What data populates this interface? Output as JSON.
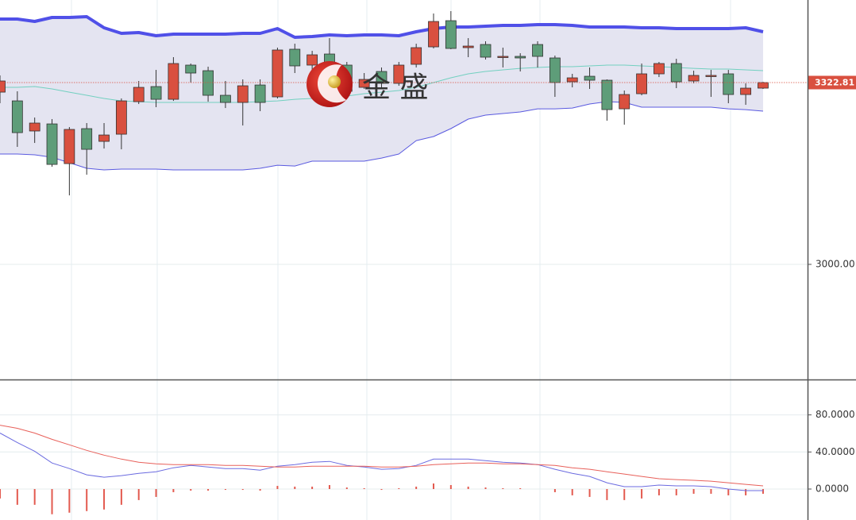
{
  "chart_data": [
    {
      "type": "candlestick",
      "open": [
        3305.8,
        3290.3,
        3236.8,
        3249.4,
        3178.9,
        3241.0,
        3218.4,
        3231.1,
        3288.9,
        3315.7,
        3293.1,
        3353.8,
        3343.9,
        3300.2,
        3287.5,
        3318.5,
        3297.4,
        3382.0,
        3353.8,
        3373.5,
        3353.8,
        3314.3,
        3342.5,
        3321.4,
        3355.2,
        3386.2,
        3432.7,
        3384.8,
        3390.4,
        3367.9,
        3369.3,
        3390.4,
        3366.5,
        3324.2,
        3334.0,
        3327.0,
        3276.2,
        3303.0,
        3338.3,
        3356.6,
        3325.6,
        3334.0,
        3338.3,
        3301.6,
        3312.9
      ],
      "high": [
        3335.5,
        3307.3,
        3260.7,
        3257.9,
        3243.8,
        3250.9,
        3250.9,
        3294.6,
        3325.6,
        3345.3,
        3367.9,
        3356.6,
        3351.0,
        3325.6,
        3328.4,
        3328.4,
        3384.8,
        3391.8,
        3379.2,
        3401.7,
        3359.4,
        3339.7,
        3349.6,
        3359.4,
        3391.8,
        3445.4,
        3449.7,
        3401.7,
        3396.1,
        3384.8,
        3374.9,
        3396.1,
        3370.7,
        3338.3,
        3349.6,
        3328.4,
        3308.7,
        3356.6,
        3359.4,
        3365.1,
        3343.9,
        3345.3,
        3345.3,
        3321.4,
        3324.2
      ],
      "low": [
        3286.1,
        3208.6,
        3215.6,
        3173.3,
        3122.5,
        3159.2,
        3205.7,
        3204.3,
        3284.7,
        3279.1,
        3290.3,
        3322.8,
        3288.9,
        3277.6,
        3246.6,
        3272.0,
        3294.6,
        3339.7,
        3342.5,
        3314.3,
        3300.2,
        3311.5,
        3314.3,
        3317.1,
        3349.6,
        3383.4,
        3382.0,
        3367.9,
        3363.7,
        3349.6,
        3342.5,
        3349.6,
        3297.4,
        3314.3,
        3311.5,
        3255.1,
        3248.0,
        3300.2,
        3332.6,
        3312.9,
        3321.4,
        3297.4,
        3286.1,
        3283.3,
        3311.5
      ],
      "close": [
        3325.6,
        3233.9,
        3250.9,
        3177.5,
        3239.6,
        3204.3,
        3229.7,
        3290.3,
        3314.3,
        3293.1,
        3356.6,
        3339.7,
        3300.2,
        3287.5,
        3317.1,
        3287.5,
        3380.6,
        3352.4,
        3372.1,
        3332.6,
        3307.3,
        3328.4,
        3321.4,
        3353.8,
        3384.8,
        3431.3,
        3383.4,
        3387.6,
        3367.9,
        3369.3,
        3366.5,
        3369.3,
        3322.8,
        3331.2,
        3327.0,
        3274.8,
        3301.6,
        3338.3,
        3356.6,
        3324.2,
        3335.5,
        3335.5,
        3301.6,
        3312.9,
        3322.81
      ],
      "up_color": "#d9503f",
      "down_color": "#5e9d79",
      "band_fill": "#e4e4f1",
      "series": [
        {
          "color": "#5050e8",
          "width": 4,
          "values": [
            3435.6,
            3435.6,
            3431.3,
            3438.4,
            3438.4,
            3439.8,
            3420.1,
            3410.2,
            3411.6,
            3405.9,
            3408.8,
            3408.8,
            3408.8,
            3408.8,
            3410.2,
            3410.2,
            3418.6,
            3403.1,
            3404.5,
            3407.4,
            3405.9,
            3407.4,
            3407.4,
            3405.9,
            3413.0,
            3418.6,
            3421.5,
            3421.5,
            3422.9,
            3424.3,
            3424.3,
            3425.7,
            3425.7,
            3424.3,
            3421.5,
            3421.5,
            3421.5,
            3420.1,
            3420.1,
            3418.6,
            3418.6,
            3418.6,
            3418.6,
            3420.1,
            3413.0
          ]
        },
        {
          "color": "#72d0c0",
          "width": 1,
          "values": [
            3314.3,
            3314.3,
            3315.7,
            3311.5,
            3305.8,
            3300.2,
            3294.6,
            3290.3,
            3288.9,
            3287.5,
            3287.5,
            3287.5,
            3287.5,
            3287.5,
            3287.5,
            3288.9,
            3290.3,
            3293.1,
            3294.6,
            3294.6,
            3298.8,
            3303.0,
            3305.8,
            3308.7,
            3314.3,
            3322.8,
            3331.2,
            3338.3,
            3342.5,
            3345.3,
            3348.1,
            3349.6,
            3351.0,
            3351.0,
            3352.4,
            3353.8,
            3353.8,
            3352.4,
            3351.0,
            3349.6,
            3348.1,
            3346.7,
            3346.7,
            3345.3,
            3343.9
          ]
        },
        {
          "color": "#5a5ae0",
          "width": 1,
          "values": [
            3195.9,
            3195.9,
            3194.5,
            3190.2,
            3180.4,
            3170.5,
            3167.7,
            3169.1,
            3169.1,
            3169.1,
            3167.7,
            3167.7,
            3167.7,
            3167.7,
            3167.7,
            3170.5,
            3176.1,
            3174.7,
            3183.2,
            3183.2,
            3183.2,
            3183.2,
            3188.8,
            3195.9,
            3219.8,
            3226.9,
            3241.0,
            3257.9,
            3265.0,
            3267.8,
            3270.6,
            3276.2,
            3276.2,
            3277.6,
            3284.7,
            3288.9,
            3287.5,
            3279.1,
            3279.1,
            3279.1,
            3279.1,
            3279.1,
            3276.2,
            3274.8,
            3272.0
          ]
        }
      ],
      "ylim": [
        2795.6,
        3469.4
      ],
      "yticks": [
        {
          "value": 3000,
          "label": "3000.00"
        }
      ],
      "grid": true,
      "last_price": {
        "value": 3322.81,
        "label": "3322.81",
        "color": "#d9503f"
      },
      "watermark": "金 盛"
    },
    {
      "type": "line",
      "series": [
        {
          "color": "#6b6be0",
          "values": [
            60.4,
            50.2,
            40.8,
            28.1,
            22.1,
            15.3,
            12.8,
            14.5,
            17.0,
            18.7,
            23.0,
            25.5,
            23.8,
            22.1,
            22.1,
            20.4,
            24.7,
            26.4,
            28.9,
            29.8,
            25.5,
            23.8,
            21.3,
            22.1,
            25.5,
            32.3,
            32.3,
            32.3,
            30.6,
            28.9,
            28.1,
            26.4,
            21.3,
            17.0,
            13.6,
            6.8,
            2.6,
            2.6,
            4.3,
            3.4,
            3.4,
            2.6,
            0,
            -1.7,
            -1.7
          ]
        },
        {
          "color": "#e8605a",
          "values": [
            68.9,
            65.5,
            60.4,
            53.6,
            47.7,
            41.7,
            36.6,
            32.3,
            28.9,
            27.2,
            26.4,
            26.4,
            26.4,
            25.5,
            25.5,
            24.7,
            23.8,
            23.8,
            24.7,
            24.7,
            24.7,
            24.7,
            23.8,
            23.8,
            24.7,
            26.4,
            27.2,
            28.1,
            28.1,
            27.2,
            27.2,
            26.4,
            25.5,
            23.0,
            21.3,
            18.7,
            16.2,
            13.6,
            11.1,
            10.2,
            9.4,
            8.5,
            6.8,
            5.1,
            3.4
          ]
        }
      ],
      "histogram": {
        "color": "#e35a4f",
        "values": [
          -10.2,
          -17.0,
          -17.0,
          -27.2,
          -25.5,
          -23.8,
          -22.1,
          -17.0,
          -11.9,
          -8.5,
          -3.4,
          -1.7,
          -1.7,
          -0.9,
          -0.9,
          -1.7,
          3.4,
          2.6,
          2.6,
          4.3,
          1.7,
          0.9,
          -0.9,
          0.9,
          2.6,
          6.0,
          4.3,
          2.6,
          1.7,
          0.9,
          0.9,
          0,
          -3.4,
          -6.8,
          -8.5,
          -11.9,
          -11.9,
          -10.2,
          -6.8,
          -6.8,
          -5.1,
          -5.1,
          -6.8,
          -6.8,
          -5.1
        ]
      },
      "ylim": [
        -33.4,
        116.5
      ],
      "yticks": [
        {
          "value": 80,
          "label": "80.0000"
        },
        {
          "value": 40,
          "label": "40.0000"
        },
        {
          "value": 0,
          "label": "0.0000"
        }
      ],
      "grid": true
    }
  ]
}
